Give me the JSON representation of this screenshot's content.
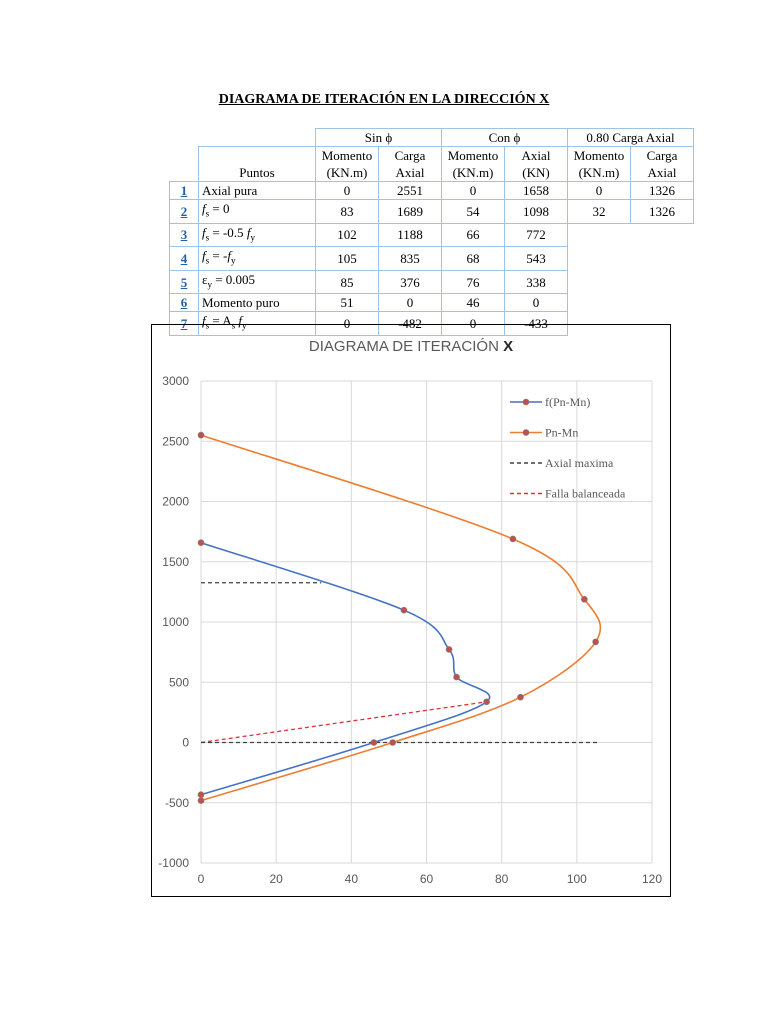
{
  "title": "DIAGRAMA DE ITERACIÓN EN LA DIRECCIÓN X",
  "table": {
    "group_headers": [
      "Sin ϕ",
      "Con ϕ",
      "0.80 Carga Axial"
    ],
    "puntos_label": "Puntos",
    "col_headers": [
      [
        "Momento",
        "(KN.m)"
      ],
      [
        "Carga",
        "Axial"
      ],
      [
        "Momento",
        "(KN.m)"
      ],
      [
        "Axial",
        "(KN)"
      ],
      [
        "Momento",
        "(KN.m)"
      ],
      [
        "Carga",
        "Axial"
      ]
    ],
    "rows": [
      {
        "num": "1",
        "label": "Axial pura",
        "values": [
          "0",
          "2551",
          "0",
          "1658",
          "0",
          "1326"
        ]
      },
      {
        "num": "2",
        "label": "fs = 0",
        "values": [
          "83",
          "1689",
          "54",
          "1098",
          "32",
          "1326"
        ]
      },
      {
        "num": "3",
        "label": "fs = -0.5 fy",
        "values": [
          "102",
          "1188",
          "66",
          "772"
        ]
      },
      {
        "num": "4",
        "label": "fs = -fy",
        "values": [
          "105",
          "835",
          "68",
          "543"
        ]
      },
      {
        "num": "5",
        "label": "εy = 0.005",
        "values": [
          "85",
          "376",
          "76",
          "338"
        ]
      },
      {
        "num": "6",
        "label": "Momento puro",
        "values": [
          "51",
          "0",
          "46",
          "0"
        ]
      },
      {
        "num": "7",
        "label": "fs = As fy",
        "values": [
          "0",
          "-482",
          "0",
          "-433"
        ]
      }
    ]
  },
  "chart_data": {
    "type": "line",
    "title": "DIAGRAMA DE ITERACIÓN X",
    "title_main": "DIAGRAMA DE ITERACIÓN ",
    "title_bold": "X",
    "xlim": [
      0,
      120
    ],
    "ylim": [
      -1000,
      3000
    ],
    "x_ticks": [
      "0",
      "20",
      "40",
      "60",
      "80",
      "100",
      "120"
    ],
    "y_ticks": [
      "3000",
      "2500",
      "2000",
      "1500",
      "1000",
      "500",
      "0",
      "-500",
      "-1000"
    ],
    "grid": true,
    "legend_position": "top-right",
    "series": [
      {
        "name": "f(Pn-Mn)",
        "color": "#4472c4",
        "dashed": false,
        "markers": true,
        "points": [
          [
            0,
            1658
          ],
          [
            54,
            1098
          ],
          [
            66,
            772
          ],
          [
            68,
            543
          ],
          [
            76,
            338
          ],
          [
            46,
            0
          ],
          [
            0,
            -433
          ]
        ]
      },
      {
        "name": "Pn-Mn",
        "color": "#ed7d31",
        "dashed": false,
        "markers": true,
        "points": [
          [
            0,
            2551
          ],
          [
            83,
            1689
          ],
          [
            102,
            1188
          ],
          [
            105,
            835
          ],
          [
            85,
            376
          ],
          [
            51,
            0
          ],
          [
            0,
            -482
          ]
        ]
      },
      {
        "name": "Axial maxima",
        "color": "#404040",
        "dashed": true,
        "markers": false,
        "points": [
          [
            0,
            1326
          ],
          [
            32,
            1326
          ]
        ]
      },
      {
        "name": "Falla balanceada",
        "color": "#e0303a",
        "dashed": true,
        "markers": false,
        "points": [
          [
            0,
            0
          ],
          [
            76,
            338
          ]
        ]
      },
      {
        "name": "",
        "color": "#404040",
        "dashed": true,
        "markers": false,
        "legend": false,
        "points": [
          [
            0,
            0
          ],
          [
            106,
            0
          ]
        ]
      }
    ]
  }
}
